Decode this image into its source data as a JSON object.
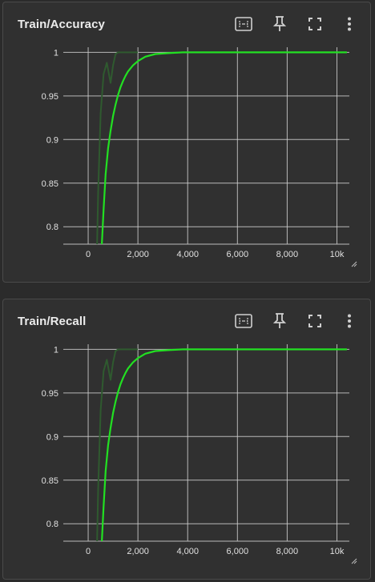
{
  "cards": [
    {
      "title": "Train/Accuracy",
      "icons": [
        "fit-domain-icon",
        "pin-icon",
        "fullscreen-icon",
        "more-vert-icon"
      ]
    },
    {
      "title": "Train/Recall",
      "icons": [
        "fit-domain-icon",
        "pin-icon",
        "fullscreen-icon",
        "more-vert-icon"
      ]
    }
  ],
  "colors": {
    "smoothed_line": "#22e022",
    "raw_line": "#2f5a2f",
    "grid": "#d0d0d0",
    "background": "#303030"
  },
  "chart_data": [
    {
      "type": "line",
      "title": "Train/Accuracy",
      "xlabel": "",
      "ylabel": "",
      "x_ticks": [
        "0",
        "2,000",
        "4,000",
        "6,000",
        "8,000",
        "10k"
      ],
      "y_ticks": [
        "0.8",
        "0.85",
        "0.9",
        "0.95",
        "1"
      ],
      "xlim": [
        -1000,
        10500
      ],
      "ylim": [
        0.78,
        1.004
      ],
      "grid": true,
      "series": [
        {
          "role": "raw",
          "x": [
            300,
            400,
            500,
            620,
            750,
            900,
            1000,
            1100,
            1200,
            1400,
            1600,
            1800,
            2000
          ],
          "y": [
            0.7,
            0.84,
            0.93,
            0.975,
            0.988,
            0.965,
            0.985,
            0.998,
            1.0,
            1.0,
            1.0,
            1.0,
            1.0
          ]
        },
        {
          "role": "smoothed",
          "x": [
            550,
            620,
            700,
            800,
            900,
            1000,
            1100,
            1200,
            1300,
            1400,
            1500,
            1600,
            1800,
            2000,
            2300,
            2700,
            3200,
            3800,
            4500,
            6000,
            8000,
            10400
          ],
          "y": [
            0.78,
            0.82,
            0.86,
            0.89,
            0.91,
            0.927,
            0.94,
            0.951,
            0.96,
            0.967,
            0.973,
            0.978,
            0.985,
            0.99,
            0.995,
            0.998,
            0.999,
            1.0,
            1.0,
            1.0,
            1.0,
            1.0
          ]
        }
      ]
    },
    {
      "type": "line",
      "title": "Train/Recall",
      "xlabel": "",
      "ylabel": "",
      "x_ticks": [
        "0",
        "2,000",
        "4,000",
        "6,000",
        "8,000",
        "10k"
      ],
      "y_ticks": [
        "0.8",
        "0.85",
        "0.9",
        "0.95",
        "1"
      ],
      "xlim": [
        -1000,
        10500
      ],
      "ylim": [
        0.78,
        1.004
      ],
      "grid": true,
      "series": [
        {
          "role": "raw",
          "x": [
            300,
            400,
            500,
            620,
            750,
            900,
            1000,
            1100,
            1200,
            1400,
            1600,
            1800,
            2000
          ],
          "y": [
            0.7,
            0.84,
            0.93,
            0.975,
            0.988,
            0.965,
            0.985,
            0.998,
            1.0,
            1.0,
            1.0,
            1.0,
            1.0
          ]
        },
        {
          "role": "smoothed",
          "x": [
            550,
            620,
            700,
            800,
            900,
            1000,
            1100,
            1200,
            1300,
            1400,
            1500,
            1600,
            1800,
            2000,
            2300,
            2700,
            3200,
            3800,
            4500,
            6000,
            8000,
            10400
          ],
          "y": [
            0.78,
            0.82,
            0.86,
            0.89,
            0.91,
            0.927,
            0.94,
            0.951,
            0.96,
            0.967,
            0.973,
            0.978,
            0.985,
            0.99,
            0.995,
            0.998,
            0.999,
            1.0,
            1.0,
            1.0,
            1.0,
            1.0
          ]
        }
      ]
    }
  ]
}
